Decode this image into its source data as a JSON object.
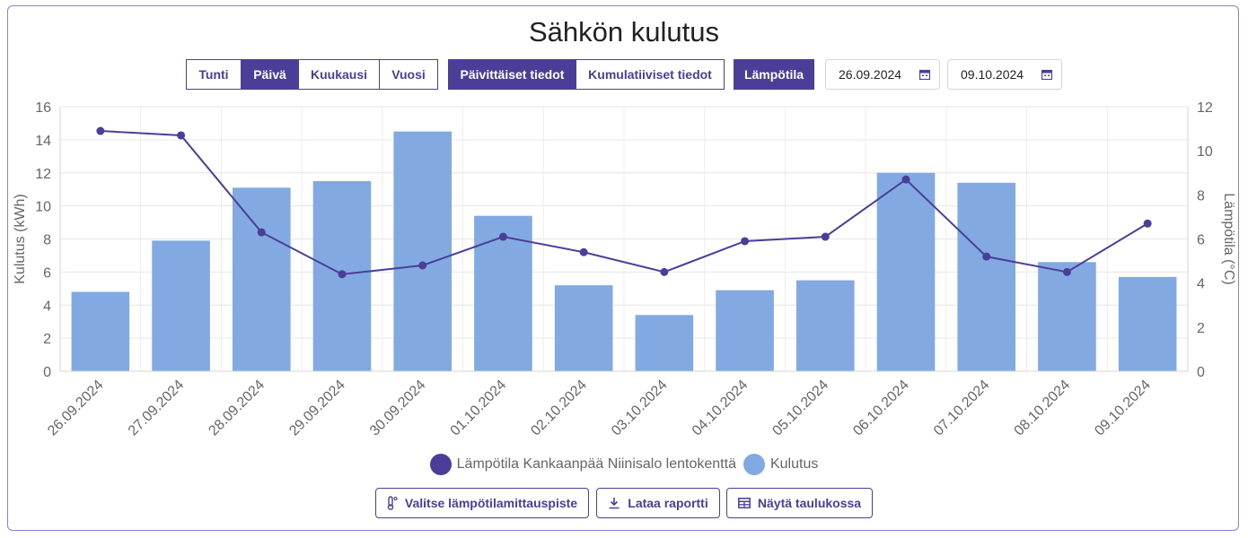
{
  "title": "Sähkön kulutus",
  "period_buttons": [
    "Tunti",
    "Päivä",
    "Kuukausi",
    "Vuosi"
  ],
  "mode_buttons": [
    "Päivittäiset tiedot",
    "Kumulatiiviset tiedot"
  ],
  "temperature_button": "Lämpötila",
  "date_start": "26.09.2024",
  "date_end": "09.10.2024",
  "actions": {
    "select_station": "Valitse lämpötilamittauspiste",
    "download_report": "Lataa raportti",
    "show_table": "Näytä taulukossa"
  },
  "chart_data": {
    "type": "bar",
    "categories": [
      "26.09.2024",
      "27.09.2024",
      "28.09.2024",
      "29.09.2024",
      "30.09.2024",
      "01.10.2024",
      "02.10.2024",
      "03.10.2024",
      "04.10.2024",
      "05.10.2024",
      "06.10.2024",
      "07.10.2024",
      "08.10.2024",
      "09.10.2024"
    ],
    "series": [
      {
        "name": "Kulutus",
        "type": "bar",
        "axis": "left",
        "color": "#82a9e2",
        "values": [
          4.8,
          7.9,
          11.1,
          11.5,
          14.5,
          9.4,
          5.2,
          3.4,
          4.9,
          5.5,
          12.0,
          11.4,
          6.6,
          5.7
        ]
      },
      {
        "name": "Lämpötila Kankaanpää Niinisalo lentokenttä",
        "type": "line",
        "axis": "right",
        "color": "#4a3e98",
        "values": [
          10.9,
          10.7,
          6.3,
          4.4,
          4.8,
          6.1,
          5.4,
          4.5,
          5.9,
          6.1,
          8.7,
          5.2,
          4.5,
          6.7
        ]
      }
    ],
    "ylabel": "Kulutus (kWh)",
    "ylim": [
      0,
      16
    ],
    "yticks": [
      0,
      2,
      4,
      6,
      8,
      10,
      12,
      14,
      16
    ],
    "y2label": "Lämpötila (°C)",
    "y2lim": [
      0,
      12
    ],
    "y2ticks": [
      0,
      2,
      4,
      6,
      8,
      10,
      12
    ],
    "grid": true,
    "legend": "bottom"
  }
}
